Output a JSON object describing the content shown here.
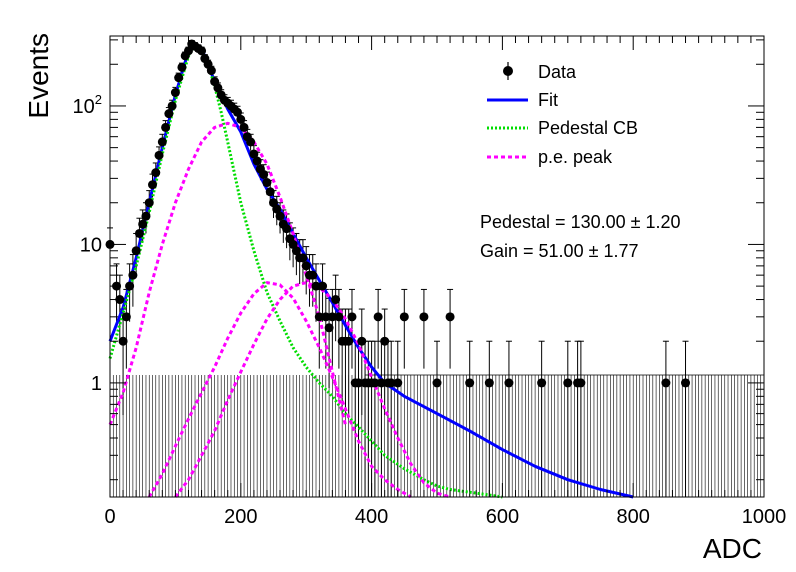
{
  "chart_data": {
    "type": "scatter",
    "title": "",
    "xlabel": "ADC",
    "ylabel": "Events",
    "xlim": [
      0,
      1000
    ],
    "ylim": [
      0.15,
      320
    ],
    "yscale": "log",
    "x_ticks": [
      "0",
      "200",
      "400",
      "600",
      "800",
      "1000"
    ],
    "y_ticks": [
      {
        "value": 1,
        "label": "1"
      },
      {
        "value": 10,
        "label": "10"
      },
      {
        "value": 100,
        "label": "10^2"
      }
    ],
    "legend": {
      "placement": "top-right",
      "entries": [
        {
          "label": "Data",
          "style": "marker",
          "color": "#000000"
        },
        {
          "label": "Fit",
          "style": "solid",
          "color": "#0000ff"
        },
        {
          "label": "Pedestal CB",
          "style": "dotted",
          "color": "#00ff00"
        },
        {
          "label": "p.e. peak",
          "style": "dashed",
          "color": "#ff00ff"
        }
      ]
    },
    "annotations": [
      "Pedestal = 130.00 ± 1.20",
      "Gain = 51.00 ± 1.77"
    ],
    "series": [
      {
        "name": "Data",
        "kind": "points-with-errors",
        "x": [
          0,
          10,
          15,
          20,
          25,
          30,
          35,
          40,
          45,
          50,
          55,
          60,
          65,
          70,
          75,
          80,
          85,
          90,
          95,
          100,
          105,
          110,
          115,
          120,
          125,
          130,
          135,
          140,
          145,
          150,
          155,
          160,
          165,
          170,
          175,
          180,
          185,
          190,
          195,
          200,
          205,
          210,
          215,
          220,
          225,
          230,
          235,
          240,
          245,
          250,
          255,
          260,
          265,
          270,
          275,
          280,
          285,
          290,
          295,
          300,
          305,
          310,
          315,
          320,
          325,
          330,
          335,
          340,
          345,
          350,
          355,
          360,
          365,
          370,
          375,
          380,
          385,
          390,
          395,
          400,
          405,
          410,
          415,
          420,
          425,
          430,
          440,
          450,
          480,
          500,
          520,
          550,
          580,
          610,
          660,
          700,
          715,
          720,
          850,
          880
        ],
        "y": [
          10,
          5,
          4,
          2,
          3,
          5,
          6,
          9,
          12,
          14,
          16,
          20,
          27,
          33,
          44,
          55,
          70,
          88,
          100,
          125,
          160,
          190,
          230,
          250,
          280,
          270,
          260,
          250,
          220,
          200,
          180,
          150,
          135,
          120,
          110,
          105,
          100,
          95,
          90,
          80,
          70,
          60,
          55,
          45,
          40,
          35,
          32,
          28,
          24,
          20,
          18,
          16,
          14,
          13,
          11,
          10,
          9,
          8,
          8,
          7,
          6,
          6,
          5,
          3,
          5,
          3,
          2.5,
          3,
          4,
          3,
          2,
          2,
          2,
          3,
          1,
          1,
          2,
          1,
          1,
          1,
          1,
          3,
          1,
          2,
          1,
          1,
          1,
          3,
          3,
          1,
          3,
          1,
          1,
          1,
          1,
          1,
          1,
          1,
          1,
          1
        ]
      },
      {
        "name": "Fit",
        "kind": "curve",
        "x": [
          0,
          20,
          40,
          60,
          80,
          100,
          120,
          130,
          140,
          150,
          160,
          180,
          200,
          220,
          240,
          260,
          280,
          300,
          320,
          340,
          360,
          380,
          400,
          420,
          450,
          500,
          550,
          600,
          650,
          700,
          750,
          800
        ],
        "y": [
          2,
          3.5,
          8,
          20,
          50,
          120,
          250,
          280,
          260,
          200,
          150,
          95,
          65,
          38,
          25,
          18,
          12,
          8,
          5.5,
          3.8,
          2.6,
          1.8,
          1.3,
          1,
          0.8,
          0.6,
          0.45,
          0.33,
          0.25,
          0.2,
          0.17,
          0.15
        ]
      },
      {
        "name": "Pedestal CB",
        "kind": "curve",
        "x": [
          0,
          20,
          40,
          60,
          80,
          100,
          120,
          130,
          140,
          150,
          160,
          170,
          180,
          190,
          200,
          220,
          240,
          260,
          280,
          300,
          320,
          340,
          360,
          380,
          400,
          420,
          450,
          480,
          500,
          520,
          560,
          600
        ],
        "y": [
          1.5,
          3.2,
          7,
          17,
          45,
          110,
          230,
          270,
          250,
          200,
          140,
          90,
          55,
          33,
          20,
          9,
          4.5,
          2.8,
          1.8,
          1.3,
          1,
          0.8,
          0.6,
          0.48,
          0.38,
          0.3,
          0.24,
          0.2,
          0.18,
          0.17,
          0.16,
          0.15
        ]
      },
      {
        "name": "p.e. peak",
        "kind": "curve",
        "x": [
          0,
          20,
          40,
          60,
          80,
          100,
          120,
          140,
          160,
          180,
          200,
          220,
          240,
          260,
          280,
          300,
          320,
          340,
          360
        ],
        "y": [
          0.5,
          0.85,
          1.8,
          4.5,
          10,
          20,
          35,
          55,
          70,
          75,
          70,
          55,
          38,
          22,
          12,
          6,
          3,
          1.2,
          0.5
        ]
      },
      {
        "name": "p.e. peak",
        "kind": "curve",
        "x": [
          60,
          80,
          100,
          120,
          140,
          160,
          180,
          200,
          220,
          240,
          260,
          280,
          300,
          320,
          340,
          360,
          380,
          400,
          420,
          440,
          460
        ],
        "y": [
          0.15,
          0.22,
          0.35,
          0.55,
          0.85,
          1.3,
          2.1,
          3.2,
          4.4,
          5.3,
          5.1,
          4.1,
          2.8,
          1.8,
          1.1,
          0.65,
          0.38,
          0.25,
          0.2,
          0.17,
          0.15
        ]
      },
      {
        "name": "p.e. peak",
        "kind": "curve",
        "x": [
          100,
          120,
          140,
          160,
          180,
          200,
          220,
          240,
          260,
          280,
          300,
          320,
          340,
          360,
          380,
          400,
          420,
          440,
          460,
          480,
          500,
          520
        ],
        "y": [
          0.15,
          0.2,
          0.3,
          0.45,
          0.75,
          1.2,
          1.9,
          2.9,
          4,
          5,
          5.3,
          4.9,
          4,
          2.9,
          1.9,
          1.1,
          0.65,
          0.4,
          0.26,
          0.19,
          0.16,
          0.15
        ]
      }
    ]
  }
}
